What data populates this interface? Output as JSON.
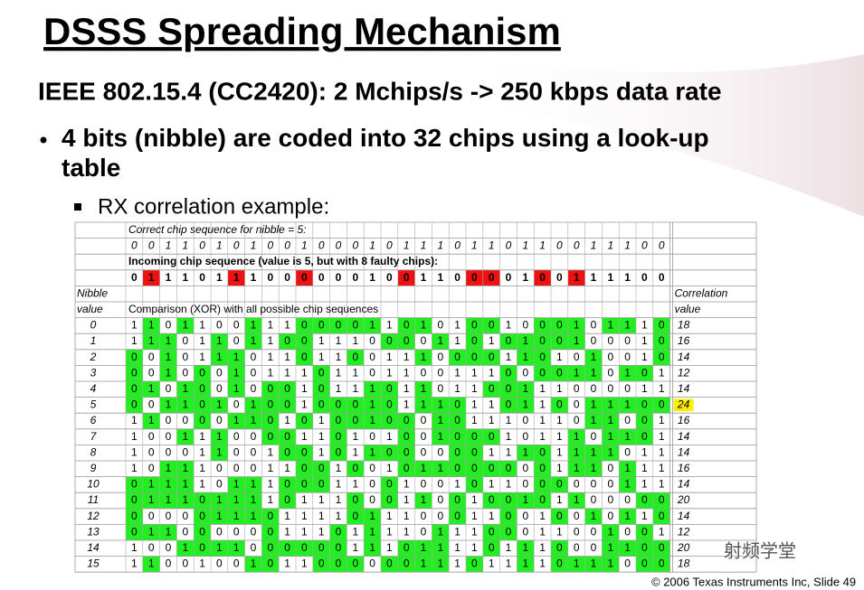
{
  "title": "DSSS Spreading Mechanism",
  "subtitle": "IEEE 802.15.4 (CC2420): 2 Mchips/s -> 250 kbps data rate",
  "bullet": "4 bits (nibble) are coded into 32 chips using a look-up table",
  "sub_bullet": "RX correlation example:",
  "table": {
    "correct_label": "Correct chip sequence for nibble = 5:",
    "correct_chips": [
      0,
      0,
      1,
      1,
      0,
      1,
      0,
      1,
      0,
      0,
      1,
      0,
      0,
      0,
      1,
      0,
      1,
      1,
      1,
      0,
      1,
      1,
      0,
      1,
      1,
      0,
      0,
      1,
      1,
      1,
      0,
      0
    ],
    "incoming_label": "Incoming chip sequence (value is 5, but with 8 faulty chips):",
    "incoming_chips": [
      0,
      1,
      1,
      1,
      0,
      1,
      1,
      1,
      0,
      0,
      0,
      0,
      0,
      0,
      1,
      0,
      0,
      1,
      1,
      0,
      0,
      0,
      0,
      1,
      0,
      0,
      1,
      1,
      1,
      1,
      0,
      0
    ],
    "nibble_header": [
      "Nibble",
      "value"
    ],
    "comparison_label": "Comparison (XOR) with all possible chip sequences",
    "correlation_header": [
      "Correlation",
      "value"
    ],
    "rows": [
      {
        "nibble": 0,
        "chips": [
          1,
          1,
          0,
          1,
          1,
          0,
          0,
          1,
          1,
          1,
          0,
          0,
          0,
          0,
          1,
          1,
          0,
          1,
          0,
          1,
          0,
          0,
          1,
          0,
          0,
          0,
          1,
          0,
          1,
          1,
          1,
          0
        ],
        "correlation": 18
      },
      {
        "nibble": 1,
        "chips": [
          1,
          1,
          1,
          0,
          1,
          1,
          0,
          1,
          1,
          0,
          0,
          1,
          1,
          1,
          0,
          0,
          0,
          0,
          1,
          1,
          0,
          1,
          0,
          1,
          0,
          0,
          1,
          0,
          0,
          0,
          1,
          0
        ],
        "correlation": 16
      },
      {
        "nibble": 2,
        "chips": [
          0,
          0,
          1,
          0,
          1,
          1,
          1,
          0,
          1,
          1,
          0,
          1,
          1,
          0,
          0,
          1,
          1,
          1,
          0,
          0,
          0,
          0,
          1,
          1,
          0,
          1,
          0,
          1,
          0,
          0,
          1,
          0
        ],
        "correlation": 14
      },
      {
        "nibble": 3,
        "chips": [
          0,
          0,
          1,
          0,
          0,
          0,
          1,
          0,
          1,
          1,
          1,
          0,
          1,
          1,
          0,
          1,
          1,
          0,
          0,
          1,
          1,
          1,
          0,
          0,
          0,
          0,
          1,
          1,
          0,
          1,
          0,
          1
        ],
        "correlation": 12
      },
      {
        "nibble": 4,
        "chips": [
          0,
          1,
          0,
          1,
          0,
          0,
          1,
          0,
          0,
          0,
          1,
          0,
          1,
          1,
          1,
          0,
          1,
          1,
          0,
          1,
          1,
          0,
          0,
          1,
          1,
          1,
          0,
          0,
          0,
          0,
          1,
          1
        ],
        "correlation": 14
      },
      {
        "nibble": 5,
        "chips": [
          0,
          0,
          1,
          1,
          0,
          1,
          0,
          1,
          0,
          0,
          1,
          0,
          0,
          0,
          1,
          0,
          1,
          1,
          1,
          0,
          1,
          1,
          0,
          1,
          1,
          0,
          0,
          1,
          1,
          1,
          0,
          0
        ],
        "correlation": 24
      },
      {
        "nibble": 6,
        "chips": [
          1,
          1,
          0,
          0,
          0,
          0,
          1,
          1,
          0,
          1,
          0,
          1,
          0,
          0,
          1,
          0,
          0,
          0,
          1,
          0,
          1,
          1,
          1,
          0,
          1,
          1,
          0,
          1,
          1,
          0,
          0,
          1
        ],
        "correlation": 16
      },
      {
        "nibble": 7,
        "chips": [
          1,
          0,
          0,
          1,
          1,
          1,
          0,
          0,
          0,
          0,
          1,
          1,
          0,
          1,
          0,
          1,
          0,
          0,
          1,
          0,
          0,
          0,
          1,
          0,
          1,
          1,
          1,
          0,
          1,
          1,
          0,
          1
        ],
        "correlation": 14
      },
      {
        "nibble": 8,
        "chips": [
          1,
          0,
          0,
          0,
          1,
          1,
          0,
          0,
          1,
          0,
          0,
          1,
          0,
          1,
          1,
          0,
          0,
          0,
          0,
          0,
          0,
          1,
          1,
          1,
          0,
          1,
          1,
          1,
          1,
          0,
          1,
          1
        ],
        "correlation": 14
      },
      {
        "nibble": 9,
        "chips": [
          1,
          0,
          1,
          1,
          1,
          0,
          0,
          0,
          1,
          1,
          0,
          0,
          1,
          0,
          0,
          1,
          0,
          1,
          1,
          0,
          0,
          0,
          0,
          0,
          0,
          1,
          1,
          1,
          0,
          1,
          1,
          1
        ],
        "correlation": 16
      },
      {
        "nibble": 10,
        "chips": [
          0,
          1,
          1,
          1,
          1,
          0,
          1,
          1,
          1,
          0,
          0,
          0,
          1,
          1,
          0,
          0,
          1,
          0,
          0,
          1,
          0,
          1,
          1,
          0,
          0,
          0,
          0,
          0,
          0,
          1,
          1,
          1
        ],
        "correlation": 14
      },
      {
        "nibble": 11,
        "chips": [
          0,
          1,
          1,
          1,
          0,
          1,
          1,
          1,
          1,
          0,
          1,
          1,
          1,
          0,
          0,
          0,
          1,
          1,
          0,
          0,
          1,
          0,
          0,
          1,
          0,
          1,
          1,
          0,
          0,
          0,
          0,
          0
        ],
        "correlation": 20
      },
      {
        "nibble": 12,
        "chips": [
          0,
          0,
          0,
          0,
          0,
          1,
          1,
          1,
          0,
          1,
          1,
          1,
          1,
          0,
          1,
          1,
          1,
          0,
          0,
          0,
          1,
          1,
          0,
          0,
          1,
          0,
          0,
          1,
          0,
          1,
          1,
          0
        ],
        "correlation": 14
      },
      {
        "nibble": 13,
        "chips": [
          0,
          1,
          1,
          0,
          0,
          0,
          0,
          0,
          0,
          1,
          1,
          1,
          0,
          1,
          1,
          1,
          1,
          0,
          1,
          1,
          1,
          0,
          0,
          0,
          1,
          1,
          0,
          0,
          1,
          0,
          0,
          1
        ],
        "correlation": 12
      },
      {
        "nibble": 14,
        "chips": [
          1,
          0,
          0,
          1,
          0,
          1,
          1,
          0,
          0,
          0,
          0,
          0,
          0,
          1,
          1,
          1,
          0,
          1,
          1,
          1,
          1,
          0,
          1,
          1,
          1,
          0,
          0,
          0,
          1,
          1,
          0,
          0
        ],
        "correlation": 20
      },
      {
        "nibble": 15,
        "chips": [
          1,
          1,
          0,
          0,
          1,
          0,
          0,
          1,
          0,
          1,
          1,
          0,
          0,
          0,
          0,
          0,
          0,
          1,
          1,
          1,
          0,
          1,
          1,
          1,
          1,
          0,
          1,
          1,
          1,
          0,
          0,
          0
        ],
        "correlation": 18
      }
    ]
  },
  "footer": "© 2006 Texas Instruments Inc, Slide 49",
  "watermark": "射频学堂"
}
